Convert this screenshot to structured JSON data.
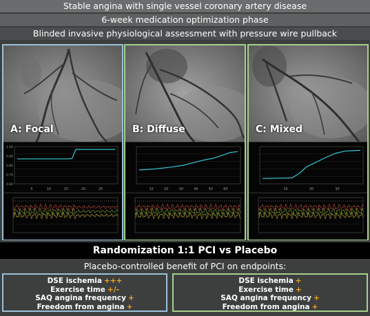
{
  "banners": [
    "Stable angina with single vessel coronary artery disease",
    "6-week medication optimization phase",
    "Blinded invasive physiological assessment with pressure wire pullback"
  ],
  "panels": [
    {
      "label": "A: Focal",
      "border_color": "#9cc2d9",
      "x_ticks": [
        "5",
        "10",
        "15",
        "20",
        "25"
      ],
      "y_ticks": [
        "1.00",
        "0.90",
        "0.80",
        "0.70",
        "0.60"
      ],
      "pullback": [
        [
          0,
          0.7
        ],
        [
          0.52,
          0.7
        ],
        [
          0.56,
          0.71
        ],
        [
          0.6,
          1.0
        ],
        [
          1.0,
          1.0
        ]
      ]
    },
    {
      "label": "B: Diffuse",
      "border_color": "#a5d28c",
      "x_ticks": [
        "10",
        "20",
        "30",
        "40",
        "50",
        "60"
      ],
      "y_ticks": [],
      "pullback": [
        [
          0,
          0.35
        ],
        [
          0.15,
          0.38
        ],
        [
          0.3,
          0.43
        ],
        [
          0.45,
          0.5
        ],
        [
          0.55,
          0.58
        ],
        [
          0.65,
          0.66
        ],
        [
          0.75,
          0.72
        ],
        [
          0.85,
          0.82
        ],
        [
          0.92,
          0.9
        ],
        [
          1.0,
          0.93
        ]
      ]
    },
    {
      "label": "C: Mixed",
      "border_color": "#a5d28c",
      "x_ticks": [
        "10",
        "20",
        "30"
      ],
      "y_ticks": [],
      "pullback": [
        [
          0,
          0.08
        ],
        [
          0.3,
          0.1
        ],
        [
          0.38,
          0.25
        ],
        [
          0.45,
          0.45
        ],
        [
          0.55,
          0.6
        ],
        [
          0.65,
          0.75
        ],
        [
          0.75,
          0.88
        ],
        [
          0.85,
          0.95
        ],
        [
          1.0,
          0.97
        ]
      ]
    }
  ],
  "randomization": "Randomization 1:1 PCI vs Placebo",
  "endpoints_title": "Placebo-controlled benefit of PCI on endpoints:",
  "endpoints_left": [
    {
      "label": "DSE ischemia",
      "mark": "+++"
    },
    {
      "label": "Exercise time",
      "mark": "+/-"
    },
    {
      "label": "SAQ angina frequency",
      "mark": "+"
    },
    {
      "label": "Freedom from angina",
      "mark": "+"
    }
  ],
  "endpoints_right": [
    {
      "label": "DSE ischemia",
      "mark": "+"
    },
    {
      "label": "Exercise time",
      "mark": "+"
    },
    {
      "label": "SAQ angina frequency",
      "mark": "+"
    },
    {
      "label": "Freedom from angina",
      "mark": "+"
    }
  ],
  "colors": {
    "focal_border": "#9cc2d9",
    "diffuse_mixed_border": "#a5d28c",
    "pullback_trace": "#35c6d6",
    "plus_marks": "#f2a81d"
  }
}
